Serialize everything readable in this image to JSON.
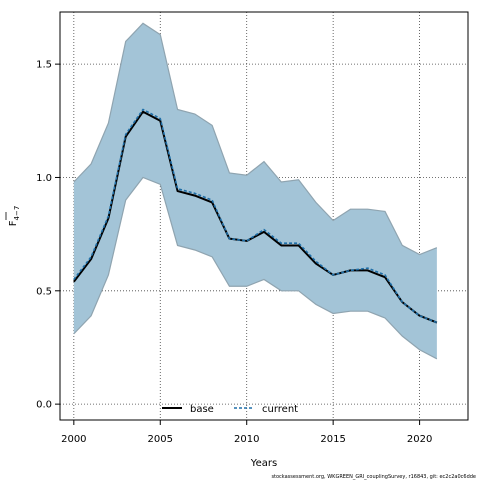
{
  "chart_data": {
    "type": "area",
    "title": "",
    "xlabel": "Years",
    "ylabel": "F",
    "ylabel_sub": "4−7",
    "xlim": [
      1999.2,
      2022.8
    ],
    "ylim": [
      -0.07,
      1.73
    ],
    "xticks": [
      2000,
      2005,
      2010,
      2015,
      2020
    ],
    "yticks": [
      0.0,
      0.5,
      1.0,
      1.5
    ],
    "xtick_labels": [
      "2000",
      "2005",
      "2010",
      "2015",
      "2020"
    ],
    "ytick_labels": [
      "0.0",
      "0.5",
      "1.0",
      "1.5"
    ],
    "grid": true,
    "legend_position": "bottom-center",
    "x": [
      2000,
      2001,
      2002,
      2003,
      2004,
      2005,
      2006,
      2007,
      2008,
      2009,
      2010,
      2011,
      2012,
      2013,
      2014,
      2015,
      2016,
      2017,
      2018,
      2019,
      2020,
      2021
    ],
    "band": {
      "upper": [
        0.98,
        1.06,
        1.24,
        1.6,
        1.68,
        1.63,
        1.3,
        1.28,
        1.23,
        1.02,
        1.01,
        1.07,
        0.98,
        0.99,
        0.89,
        0.81,
        0.86,
        0.86,
        0.85,
        0.7,
        0.66,
        0.69
      ],
      "lower": [
        0.31,
        0.39,
        0.57,
        0.9,
        1.0,
        0.97,
        0.7,
        0.68,
        0.65,
        0.52,
        0.52,
        0.55,
        0.5,
        0.5,
        0.44,
        0.4,
        0.41,
        0.41,
        0.38,
        0.3,
        0.24,
        0.2
      ],
      "fill": "#a3c4d7",
      "edge": "#8fa4b0"
    },
    "series": [
      {
        "name": "base",
        "values": [
          0.54,
          0.64,
          0.82,
          1.18,
          1.29,
          1.25,
          0.94,
          0.92,
          0.89,
          0.73,
          0.72,
          0.76,
          0.7,
          0.7,
          0.62,
          0.57,
          0.59,
          0.59,
          0.56,
          0.45,
          0.39,
          0.36
        ],
        "color": "#000000",
        "style": "solid"
      },
      {
        "name": "current",
        "values": [
          0.55,
          0.65,
          0.83,
          1.19,
          1.3,
          1.26,
          0.95,
          0.93,
          0.9,
          0.73,
          0.72,
          0.77,
          0.71,
          0.71,
          0.63,
          0.57,
          0.59,
          0.6,
          0.57,
          0.45,
          0.39,
          0.36
        ],
        "color": "#1f6fa8",
        "style": "dashed"
      }
    ]
  },
  "footnote": "stockassessment.org, WKGREEN_GRI_couplingSurvey, r16843, git: ec2c2a0c6dde"
}
